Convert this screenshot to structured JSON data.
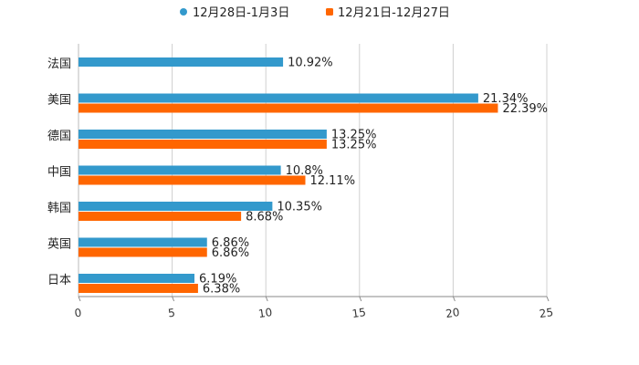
{
  "chart_data": {
    "type": "bar",
    "orientation": "horizontal",
    "title": "",
    "xlabel": "",
    "ylabel": "",
    "xlim": [
      0,
      25
    ],
    "xticks": [
      0,
      5,
      10,
      15,
      20,
      25
    ],
    "grid": true,
    "legend_position": "top-center",
    "categories": [
      "法国",
      "美国",
      "德国",
      "中国",
      "韩国",
      "英国",
      "日本"
    ],
    "series": [
      {
        "name": "12月28日-1月3日",
        "color": "#3399cc",
        "values": [
          10.92,
          21.34,
          13.25,
          10.8,
          10.35,
          6.86,
          6.19
        ],
        "labels": [
          "10.92%",
          "21.34%",
          "13.25%",
          "10.8%",
          "10.35%",
          "6.86%",
          "6.19%"
        ]
      },
      {
        "name": "12月21日-12月27日",
        "color": "#ff6600",
        "values": [
          null,
          22.39,
          13.25,
          12.11,
          8.68,
          6.86,
          6.38
        ],
        "labels": [
          "",
          "22.39%",
          "13.25%",
          "12.11%",
          "8.68%",
          "6.86%",
          "6.38%"
        ]
      }
    ]
  }
}
